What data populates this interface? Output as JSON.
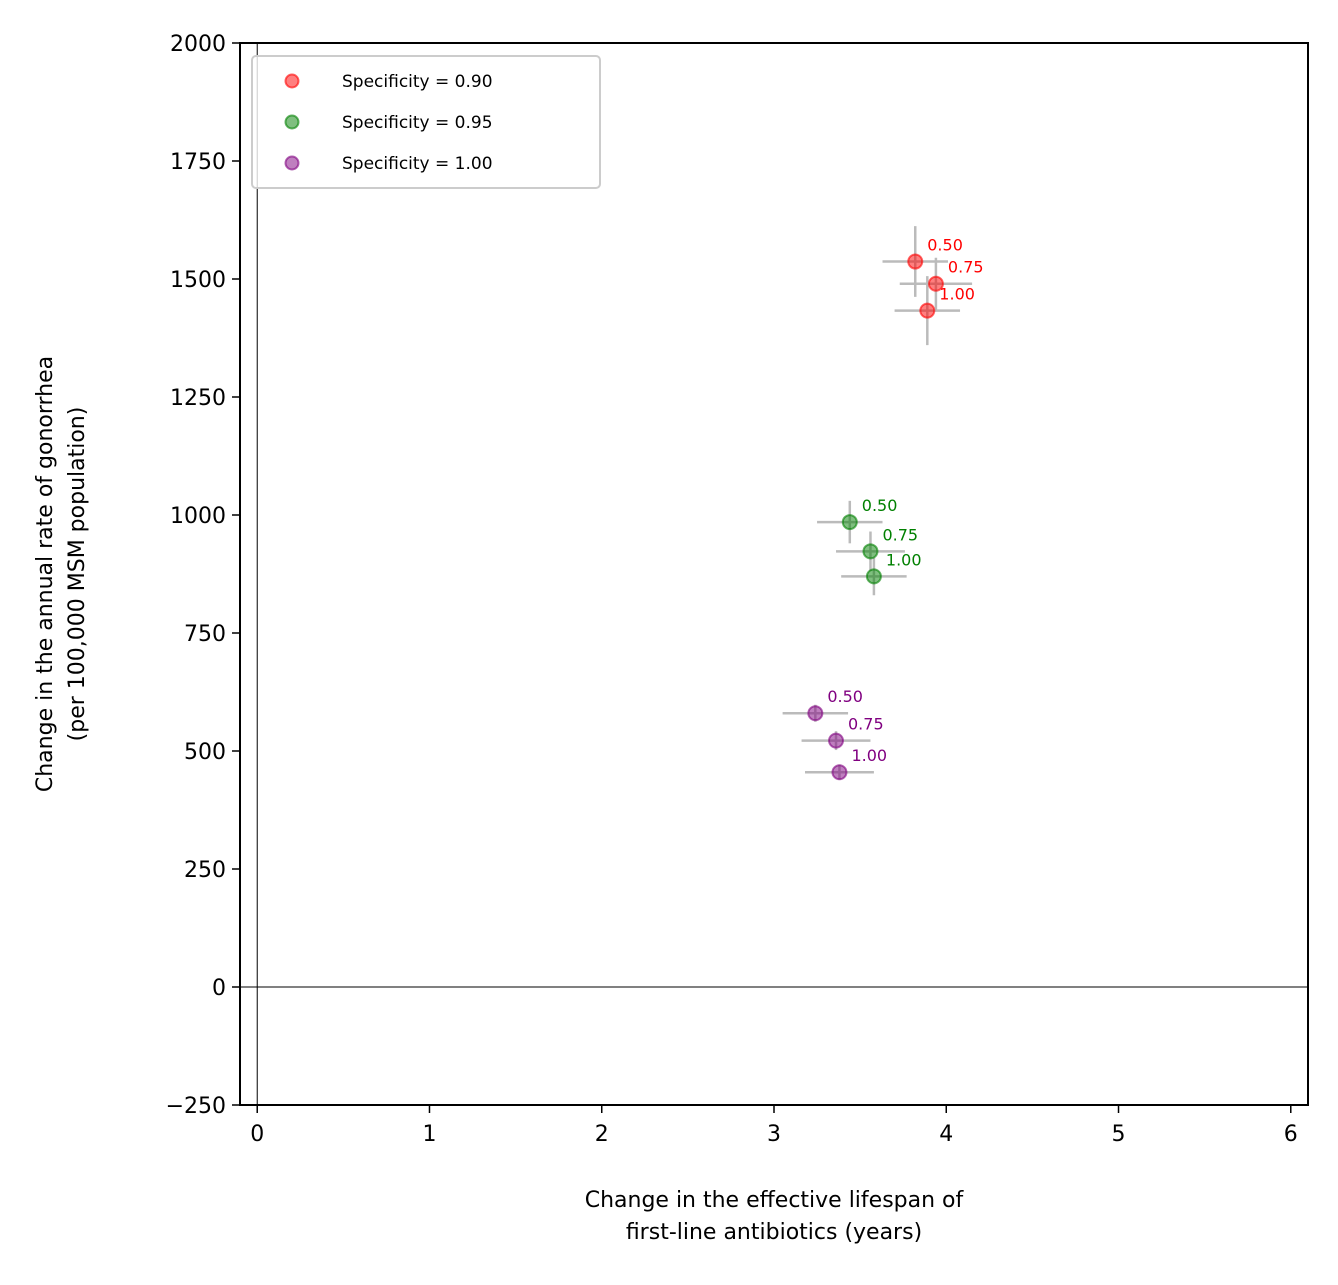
{
  "chart_data": {
    "type": "scatter",
    "xlabel_lines": [
      "Change in the effective lifespan of",
      "first-line antibiotics (years)"
    ],
    "ylabel_lines": [
      "Change in the annual rate of gonorrhea",
      "(per 100,000 MSM population)"
    ],
    "xlim": [
      -0.1,
      6.1
    ],
    "ylim": [
      -250,
      2000
    ],
    "xticks": [
      0,
      1,
      2,
      3,
      4,
      5,
      6
    ],
    "xtick_labels": [
      "0",
      "1",
      "2",
      "3",
      "4",
      "5",
      "6"
    ],
    "yticks": [
      -250,
      0,
      250,
      500,
      750,
      1000,
      1250,
      1500,
      1750,
      2000
    ],
    "ytick_labels": [
      "−250",
      "0",
      "250",
      "500",
      "750",
      "1000",
      "1250",
      "1500",
      "1750",
      "2000"
    ],
    "legend_position": "top-left",
    "grid": false,
    "zero_lines": true,
    "series": [
      {
        "name": "Specificity = 0.90",
        "color": "#ff0000",
        "label_color": "#ff0000",
        "points": [
          {
            "x": 3.82,
            "y": 1537,
            "xerr": 0.19,
            "yerr": 75,
            "label": "0.50"
          },
          {
            "x": 3.94,
            "y": 1490,
            "xerr": 0.21,
            "yerr": 55,
            "label": "0.75"
          },
          {
            "x": 3.89,
            "y": 1433,
            "xerr": 0.19,
            "yerr": 73,
            "label": "1.00"
          }
        ]
      },
      {
        "name": "Specificity = 0.95",
        "color": "#008000",
        "label_color": "#008000",
        "points": [
          {
            "x": 3.44,
            "y": 985,
            "xerr": 0.19,
            "yerr": 45,
            "label": "0.50"
          },
          {
            "x": 3.56,
            "y": 923,
            "xerr": 0.2,
            "yerr": 42,
            "label": "0.75"
          },
          {
            "x": 3.58,
            "y": 870,
            "xerr": 0.19,
            "yerr": 40,
            "label": "1.00"
          }
        ]
      },
      {
        "name": "Specificity = 1.00",
        "color": "#800080",
        "label_color": "#800080",
        "points": [
          {
            "x": 3.24,
            "y": 580,
            "xerr": 0.19,
            "yerr": 18,
            "label": "0.50"
          },
          {
            "x": 3.36,
            "y": 522,
            "xerr": 0.2,
            "yerr": 20,
            "label": "0.75"
          },
          {
            "x": 3.38,
            "y": 455,
            "xerr": 0.2,
            "yerr": 16,
            "label": "1.00"
          }
        ]
      }
    ]
  }
}
